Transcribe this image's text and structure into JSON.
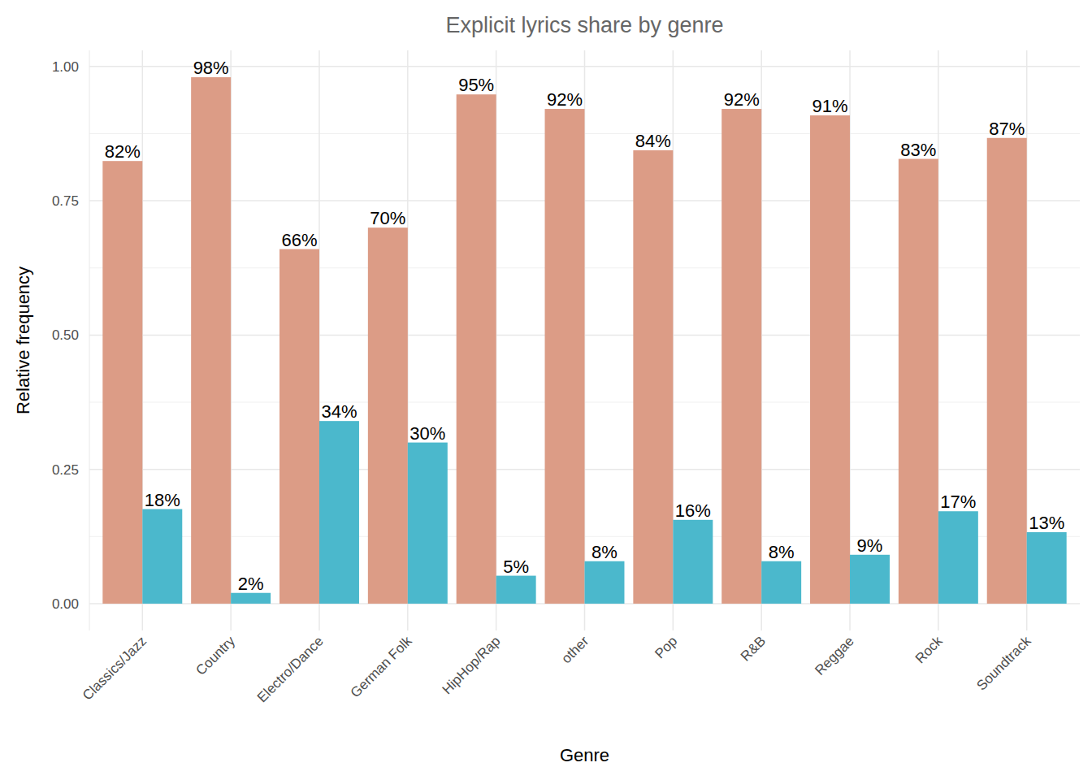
{
  "chart_data": {
    "type": "bar",
    "title": "Explicit lyrics share by genre",
    "x_label": "Genre",
    "y_label": "Relative frequency",
    "categories": [
      "Classics/Jazz",
      "Country",
      "Electro/Dance",
      "German Folk",
      "HipHop/Rap",
      "other",
      "Pop",
      "R&B",
      "Reggae",
      "Rock",
      "Soundtrack"
    ],
    "series": [
      {
        "color": "#dc9c86",
        "values": [
          0.824,
          0.98,
          0.66,
          0.7,
          0.948,
          0.921,
          0.844,
          0.921,
          0.909,
          0.828,
          0.867
        ],
        "value_labels": [
          "82%",
          "98%",
          "66%",
          "70%",
          "95%",
          "92%",
          "84%",
          "92%",
          "91%",
          "83%",
          "87%"
        ]
      },
      {
        "color": "#4bb8cc",
        "values": [
          0.176,
          0.02,
          0.34,
          0.3,
          0.052,
          0.079,
          0.156,
          0.079,
          0.091,
          0.172,
          0.133
        ],
        "value_labels": [
          "18%",
          "2%",
          "34%",
          "30%",
          "5%",
          "8%",
          "16%",
          "8%",
          "9%",
          "17%",
          "13%"
        ]
      }
    ],
    "ylim": [
      -0.05,
      1.03
    ],
    "yticks": [
      {
        "value": 0,
        "label": "0.00"
      },
      {
        "value": 0.25,
        "label": "0.25"
      },
      {
        "value": 0.5,
        "label": "0.50"
      },
      {
        "value": 0.75,
        "label": "0.75"
      },
      {
        "value": 1,
        "label": "1.00"
      }
    ],
    "grid": true,
    "data_labels": true
  }
}
